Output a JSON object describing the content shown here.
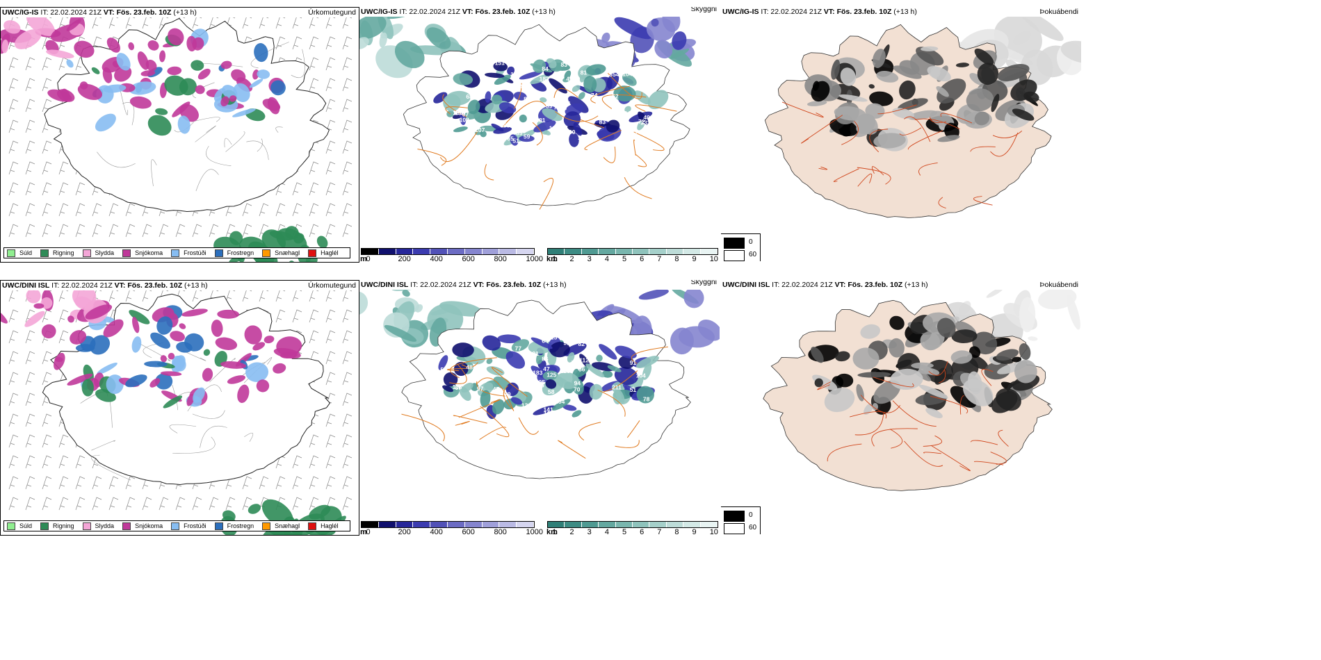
{
  "rows": [
    {
      "model": "UWC/IG-IS",
      "it_text": "IT: 22.02.2024 21Z",
      "vt_text": "VT: Fös. 23.feb. 10Z",
      "lead": "(+13 h)",
      "precip_title": "Úrkomutegund",
      "cloud_title": "Skyggni",
      "fog_title": "Þokuábendi"
    },
    {
      "model": "UWC/DINI ISL",
      "it_text": "IT: 22.02.2024 21Z",
      "vt_text": "VT: Fös. 23.feb. 10Z",
      "lead": "(+13 h)",
      "precip_title": "Úrkomutegund",
      "cloud_title": "Skyggni",
      "fog_title": "Þokuábendi"
    }
  ],
  "precip_legend": [
    {
      "label": "Súld",
      "color": "#90ee90"
    },
    {
      "label": "Rigning",
      "color": "#2e8b57"
    },
    {
      "label": "Slydda",
      "color": "#f4a6d7"
    },
    {
      "label": "Snjókoma",
      "color": "#c0399a"
    },
    {
      "label": "Frostúði",
      "color": "#87bdf2"
    },
    {
      "label": "Frostregn",
      "color": "#2b6fbd"
    },
    {
      "label": "Snæhagl",
      "color": "#ff9900"
    },
    {
      "label": "Haglél",
      "color": "#e01010"
    }
  ],
  "ceiling_bar": {
    "unit": "m",
    "ticks": [
      "0",
      "200",
      "400",
      "600",
      "800",
      "1000"
    ],
    "colors": [
      "#000000",
      "#10106e",
      "#26269a",
      "#3b3bb0",
      "#5252b8",
      "#6c6cc4",
      "#8585cf",
      "#a0a0da",
      "#babae4",
      "#d6d6f0"
    ]
  },
  "visibility_bar": {
    "unit": "km",
    "ticks": [
      "1",
      "2",
      "3",
      "4",
      "5",
      "6",
      "7",
      "8",
      "9",
      "10"
    ],
    "colors": [
      "#2f7f77",
      "#3d8c84",
      "#4f9a92",
      "#64a8a0",
      "#79b6ae",
      "#8fc3bc",
      "#a5d0ca",
      "#bddcd8",
      "#d3e9e6",
      "#e9f4f3"
    ]
  },
  "fog_legend": {
    "v0": "0",
    "v60": "60"
  },
  "cloud_labels": [
    [
      "97",
      "160",
      "100",
      "83",
      "225",
      "181",
      "108",
      "59",
      "51",
      "84",
      "81",
      "81",
      "86",
      "85",
      "59",
      "151",
      "68",
      "62",
      "74",
      "50",
      "48",
      "64",
      "79",
      "71",
      "129",
      "102",
      "88",
      "72",
      "49",
      "40",
      "65",
      "207",
      "235",
      "104",
      "182",
      "55",
      "83",
      "70",
      "122",
      "117",
      "164",
      "27",
      "354",
      "130",
      "189",
      "233",
      "159",
      "128",
      "59",
      "46"
    ],
    [
      "123",
      "104",
      "94",
      "138",
      "90",
      "112",
      "200",
      "335",
      "215",
      "125",
      "52",
      "51",
      "79",
      "91",
      "128",
      "47",
      "58",
      "145",
      "141",
      "48",
      "86",
      "64",
      "70",
      "58",
      "65",
      "45",
      "82",
      "56",
      "77",
      "64",
      "115",
      "166",
      "97",
      "76",
      "57",
      "150",
      "131",
      "86",
      "118",
      "211",
      "125",
      "67",
      "95",
      "109",
      "183",
      "92",
      "132",
      "78",
      "335",
      "104"
    ]
  ]
}
